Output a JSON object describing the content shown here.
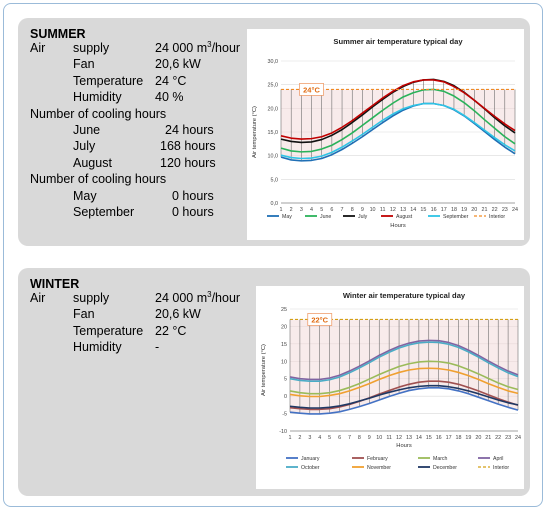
{
  "summer": {
    "heading": "SUMMER",
    "air_label": "Air",
    "supply_label": "supply",
    "supply_value": "24 000 m",
    "supply_sup": "3",
    "supply_unit": "/hour",
    "fan_label": "Fan",
    "fan_value": "20,6 kW",
    "temperature_label": "Temperature",
    "temperature_value": "24 °C",
    "humidity_label": "Humidity",
    "humidity_value": "40 %",
    "cooling_heading_1": "Number of cooling hours",
    "cooling_1": [
      {
        "month": "June",
        "value": "24 hours"
      },
      {
        "month": "July",
        "value": "168 hours"
      },
      {
        "month": "August",
        "value": "120 hours"
      }
    ],
    "cooling_heading_2": "Number of cooling hours",
    "cooling_2": [
      {
        "month": "May",
        "value": "0 hours"
      },
      {
        "month": "September",
        "value": "0 hours"
      }
    ]
  },
  "winter": {
    "heading": "WINTER",
    "air_label": "Air",
    "supply_label": "supply",
    "supply_value": "24 000 m",
    "supply_sup": "3",
    "supply_unit": "/hour",
    "fan_label": "Fan",
    "fan_value": "20,6 kW",
    "temperature_label": "Temperature",
    "temperature_value": "22 °C",
    "humidity_label": "Humidity",
    "humidity_value": "-"
  },
  "chart_data": [
    {
      "type": "line",
      "title": "Summer air temperature typical day",
      "xlabel": "Hours",
      "ylabel": "Air temperature (°C)",
      "x": [
        1,
        2,
        3,
        4,
        5,
        6,
        7,
        8,
        9,
        10,
        11,
        12,
        13,
        14,
        15,
        16,
        17,
        18,
        19,
        20,
        21,
        22,
        23,
        24
      ],
      "xlim": [
        1,
        24
      ],
      "ylim": [
        0,
        30
      ],
      "yticks": [
        "0,0",
        "5,0",
        "10,0",
        "15,0",
        "20,0",
        "25,0",
        "30,0"
      ],
      "grid": true,
      "legend": "bottom",
      "annotation": "24°C",
      "band_fill": "#f2dada",
      "series": [
        {
          "name": "May",
          "color": "#1f6fb5",
          "values": [
            9.7,
            9.1,
            8.9,
            9.0,
            9.4,
            10.2,
            11.3,
            12.6,
            14.0,
            15.5,
            17.0,
            18.4,
            19.6,
            20.5,
            21.0,
            21.0,
            20.6,
            19.7,
            18.4,
            16.8,
            15.1,
            13.4,
            11.8,
            10.4
          ]
        },
        {
          "name": "June",
          "color": "#2ab25a",
          "values": [
            11.6,
            11.0,
            10.8,
            10.9,
            11.4,
            12.2,
            13.4,
            14.8,
            16.4,
            18.0,
            19.6,
            21.1,
            22.4,
            23.3,
            23.9,
            24.0,
            23.6,
            22.6,
            21.2,
            19.5,
            17.6,
            15.8,
            14.0,
            12.5
          ]
        },
        {
          "name": "July",
          "color": "#111111",
          "values": [
            13.5,
            13.0,
            12.8,
            12.9,
            13.4,
            14.3,
            15.5,
            17.0,
            18.6,
            20.3,
            21.9,
            23.4,
            24.6,
            25.5,
            26.0,
            26.1,
            25.7,
            24.8,
            23.4,
            21.7,
            19.9,
            18.0,
            16.3,
            14.8
          ]
        },
        {
          "name": "August",
          "color": "#c00000",
          "values": [
            14.2,
            13.7,
            13.5,
            13.6,
            14.0,
            14.8,
            16.0,
            17.4,
            19.0,
            20.6,
            22.2,
            23.6,
            24.8,
            25.6,
            26.0,
            26.0,
            25.6,
            24.6,
            23.3,
            21.7,
            20.0,
            18.3,
            16.7,
            15.3
          ]
        },
        {
          "name": "September",
          "color": "#2ec4e6",
          "values": [
            10.1,
            9.6,
            9.4,
            9.5,
            9.9,
            10.7,
            11.8,
            13.1,
            14.5,
            16.0,
            17.5,
            18.8,
            19.9,
            20.6,
            21.0,
            21.0,
            20.6,
            19.8,
            18.5,
            17.0,
            15.4,
            13.8,
            12.3,
            11.0
          ]
        },
        {
          "name": "Interior",
          "color": "#f08a24",
          "dashed": true,
          "values": [
            24,
            24,
            24,
            24,
            24,
            24,
            24,
            24,
            24,
            24,
            24,
            24,
            24,
            24,
            24,
            24,
            24,
            24,
            24,
            24,
            24,
            24,
            24,
            24
          ]
        }
      ]
    },
    {
      "type": "line",
      "title": "Winter air temperature typical day",
      "xlabel": "Hours",
      "ylabel": "Air temperature (°C)",
      "x": [
        1,
        2,
        3,
        4,
        5,
        6,
        7,
        8,
        9,
        10,
        11,
        12,
        13,
        14,
        15,
        16,
        17,
        18,
        19,
        20,
        21,
        22,
        23,
        24
      ],
      "xlim": [
        1,
        24
      ],
      "ylim": [
        -10,
        25
      ],
      "yticks": [
        "-10",
        "-5",
        "0",
        "5",
        "10",
        "15",
        "20",
        "25"
      ],
      "grid": true,
      "legend": "bottom",
      "annotation": "22°C",
      "band_fill": "#f2dada",
      "series": [
        {
          "name": "January",
          "color": "#4472c4",
          "values": [
            -4.6,
            -4.9,
            -5.1,
            -5.1,
            -4.9,
            -4.5,
            -3.8,
            -3.0,
            -2.1,
            -1.1,
            -0.1,
            0.8,
            1.6,
            2.1,
            2.4,
            2.4,
            2.1,
            1.5,
            0.7,
            -0.3,
            -1.3,
            -2.3,
            -3.2,
            -4.0
          ]
        },
        {
          "name": "February",
          "color": "#a05050",
          "values": [
            -3.3,
            -3.6,
            -3.8,
            -3.8,
            -3.6,
            -3.1,
            -2.4,
            -1.5,
            -0.5,
            0.6,
            1.6,
            2.6,
            3.4,
            4.0,
            4.3,
            4.3,
            4.0,
            3.4,
            2.5,
            1.5,
            0.4,
            -0.7,
            -1.7,
            -2.6
          ]
        },
        {
          "name": "March",
          "color": "#9bbb59",
          "values": [
            1.5,
            1.0,
            0.7,
            0.7,
            1.0,
            1.6,
            2.5,
            3.6,
            4.9,
            6.2,
            7.4,
            8.5,
            9.3,
            9.8,
            10.0,
            9.9,
            9.5,
            8.7,
            7.6,
            6.4,
            5.1,
            3.8,
            2.7,
            1.9
          ]
        },
        {
          "name": "April",
          "color": "#8064a2",
          "values": [
            5.5,
            5.0,
            4.8,
            4.8,
            5.2,
            6.0,
            7.2,
            8.6,
            10.1,
            11.7,
            13.1,
            14.3,
            15.2,
            15.8,
            16.0,
            15.9,
            15.4,
            14.5,
            13.2,
            11.7,
            10.1,
            8.6,
            7.2,
            6.1
          ]
        },
        {
          "name": "October",
          "color": "#4bacc6",
          "values": [
            5.0,
            4.5,
            4.3,
            4.3,
            4.7,
            5.5,
            6.7,
            8.1,
            9.6,
            11.2,
            12.6,
            13.8,
            14.7,
            15.3,
            15.5,
            15.4,
            14.9,
            14.0,
            12.7,
            11.2,
            9.6,
            8.1,
            6.7,
            5.6
          ]
        },
        {
          "name": "November",
          "color": "#f0a030",
          "values": [
            0.5,
            0.1,
            -0.1,
            -0.1,
            0.2,
            0.7,
            1.5,
            2.5,
            3.6,
            4.8,
            5.9,
            6.8,
            7.5,
            7.9,
            8.0,
            7.9,
            7.5,
            6.8,
            5.9,
            4.8,
            3.6,
            2.5,
            1.5,
            0.8
          ]
        },
        {
          "name": "December",
          "color": "#1f3864",
          "values": [
            -2.9,
            -3.2,
            -3.4,
            -3.4,
            -3.2,
            -2.8,
            -2.2,
            -1.4,
            -0.6,
            0.3,
            1.1,
            1.8,
            2.4,
            2.8,
            3.0,
            3.0,
            2.7,
            2.2,
            1.5,
            0.7,
            -0.2,
            -1.1,
            -1.9,
            -2.5
          ]
        },
        {
          "name": "Interior",
          "color": "#d4a017",
          "dashed": true,
          "values": [
            22,
            22,
            22,
            22,
            22,
            22,
            22,
            22,
            22,
            22,
            22,
            22,
            22,
            22,
            22,
            22,
            22,
            22,
            22,
            22,
            22,
            22,
            22,
            22
          ]
        }
      ]
    }
  ]
}
